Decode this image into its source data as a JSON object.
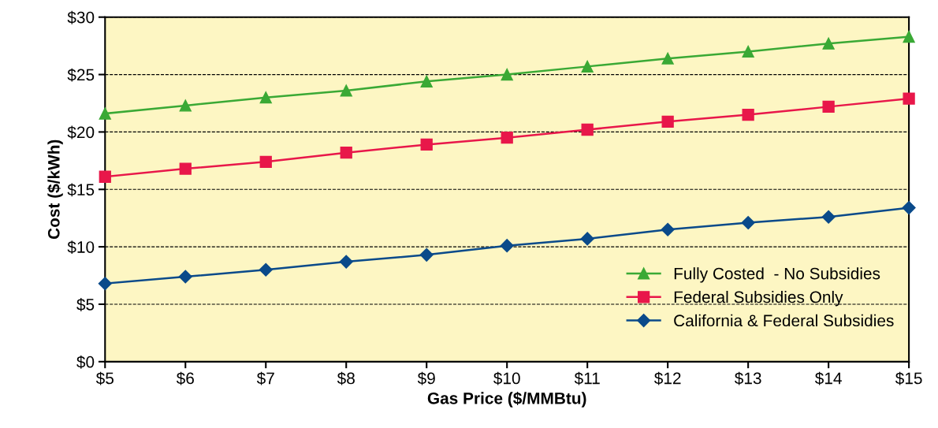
{
  "chart_data": {
    "type": "line",
    "xlabel": "Gas Price ($/MMBtu)",
    "ylabel": "Cost ($/kWh)",
    "x": [
      5,
      6,
      7,
      8,
      9,
      10,
      11,
      12,
      13,
      14,
      15
    ],
    "series": [
      {
        "name": "Fully Costed  - No Subsidies",
        "color": "#3aa935",
        "marker": "triangle",
        "values": [
          21.6,
          22.3,
          23.0,
          23.6,
          24.4,
          25.0,
          25.7,
          26.4,
          27.0,
          27.7,
          28.3
        ]
      },
      {
        "name": "Federal Subsidies Only",
        "color": "#e8174a",
        "marker": "square",
        "values": [
          16.1,
          16.8,
          17.4,
          18.2,
          18.9,
          19.5,
          20.2,
          20.9,
          21.5,
          22.2,
          22.9
        ]
      },
      {
        "name": "California & Federal Subsidies",
        "color": "#0a4a8a",
        "marker": "diamond",
        "values": [
          6.8,
          7.4,
          8.0,
          8.7,
          9.3,
          10.1,
          10.7,
          11.5,
          12.1,
          12.6,
          13.4
        ]
      }
    ],
    "xlim": [
      5,
      15
    ],
    "xticks": [
      {
        "value": 5,
        "label": "$5"
      },
      {
        "value": 6,
        "label": "$6"
      },
      {
        "value": 7,
        "label": "$7"
      },
      {
        "value": 8,
        "label": "$8"
      },
      {
        "value": 9,
        "label": "$9"
      },
      {
        "value": 10,
        "label": "$10"
      },
      {
        "value": 11,
        "label": "$11"
      },
      {
        "value": 12,
        "label": "$12"
      },
      {
        "value": 13,
        "label": "$13"
      },
      {
        "value": 14,
        "label": "$14"
      },
      {
        "value": 15,
        "label": "$15"
      }
    ],
    "ylim": [
      0,
      30
    ],
    "yticks": [
      {
        "value": 0,
        "label": "$0"
      },
      {
        "value": 5,
        "label": "$5"
      },
      {
        "value": 10,
        "label": "$10"
      },
      {
        "value": 15,
        "label": "$15"
      },
      {
        "value": 20,
        "label": "$20"
      },
      {
        "value": 25,
        "label": "$25"
      },
      {
        "value": 30,
        "label": "$30"
      }
    ],
    "grid": "y",
    "legend": "lower right",
    "line_style": "solid"
  }
}
